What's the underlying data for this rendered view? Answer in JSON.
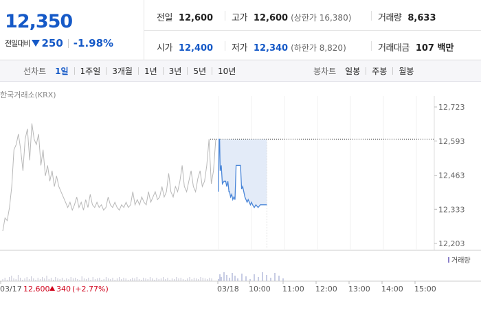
{
  "price": {
    "current": "12,350",
    "change_label": "전일대비",
    "change": "250",
    "change_rate": "-1.98%"
  },
  "stats": {
    "prev_close": {
      "label": "전일",
      "value": "12,600"
    },
    "high": {
      "label": "고가",
      "value": "12,600",
      "sub": "(상한가 16,380)"
    },
    "volume": {
      "label": "거래량",
      "value": "8,633"
    },
    "open": {
      "label": "시가",
      "value": "12,400"
    },
    "low": {
      "label": "저가",
      "value": "12,340",
      "sub": "(하한가 8,820)"
    },
    "trade_value": {
      "label": "거래대금",
      "value": "107 백만"
    }
  },
  "line_tabs": {
    "label": "선차트",
    "items": [
      "1일",
      "1주일",
      "3개월",
      "1년",
      "3년",
      "5년",
      "10년"
    ],
    "active": 0
  },
  "candle_tabs": {
    "label": "봉차트",
    "items": [
      "일봉",
      "주봉",
      "월봉"
    ]
  },
  "source": "한국거래소(KRX)",
  "colors": {
    "blue": "#1559c7",
    "red": "#d0021b",
    "line": "#4a86d8",
    "fill": "#e3ebf8",
    "history": "#b8b8b8"
  },
  "chart_data": {
    "type": "line",
    "y_ticks": [
      "12,723",
      "12,593",
      "12,463",
      "12,333",
      "12,203"
    ],
    "ylim": [
      12203,
      12723
    ],
    "x_ticks": [
      "03/17",
      "03/18",
      "10:00",
      "11:00",
      "12:00",
      "13:00",
      "14:00",
      "15:00"
    ],
    "volume_legend": "거래량",
    "prev_day": {
      "date": "03/17",
      "close": "12,600",
      "change": "340",
      "change_rate": "(+2.77%)"
    },
    "prev_close_line": 12600,
    "history": [
      12250,
      12300,
      12290,
      12340,
      12420,
      12560,
      12580,
      12620,
      12560,
      12480,
      12600,
      12640,
      12520,
      12660,
      12600,
      12580,
      12620,
      12500,
      12560,
      12460,
      12500,
      12440,
      12480,
      12420,
      12460,
      12420,
      12400,
      12380,
      12360,
      12340,
      12360,
      12330,
      12350,
      12380,
      12340,
      12360,
      12330,
      12370,
      12340,
      12390,
      12350,
      12340,
      12360,
      12340,
      12350,
      12330,
      12340,
      12380,
      12350,
      12340,
      12360,
      12340,
      12330,
      12350,
      12340,
      12360,
      12340,
      12350,
      12400,
      12350,
      12370,
      12350,
      12380,
      12360,
      12350,
      12400,
      12360,
      12380,
      12400,
      12370,
      12380,
      12420,
      12380,
      12400,
      12470,
      12400,
      12380,
      12420,
      12400,
      12440,
      12500,
      12420,
      12400,
      12440,
      12480,
      12420,
      12400,
      12450,
      12480,
      12420,
      12440,
      12500,
      12600,
      12430,
      12480,
      12600
    ],
    "today": [
      [
        "09:00",
        12400
      ],
      [
        "09:01",
        12600
      ],
      [
        "09:02",
        12600
      ],
      [
        "09:03",
        12480
      ],
      [
        "09:05",
        12500
      ],
      [
        "09:07",
        12430
      ],
      [
        "09:10",
        12440
      ],
      [
        "09:13",
        12440
      ],
      [
        "09:15",
        12420
      ],
      [
        "09:17",
        12440
      ],
      [
        "09:19",
        12400
      ],
      [
        "09:20",
        12400
      ],
      [
        "09:22",
        12380
      ],
      [
        "09:24",
        12390
      ],
      [
        "09:26",
        12370
      ],
      [
        "09:28",
        12380
      ],
      [
        "09:30",
        12370
      ],
      [
        "09:32",
        12500
      ],
      [
        "09:40",
        12500
      ],
      [
        "09:42",
        12410
      ],
      [
        "09:44",
        12420
      ],
      [
        "09:46",
        12400
      ],
      [
        "09:48",
        12380
      ],
      [
        "09:50",
        12370
      ],
      [
        "09:52",
        12360
      ],
      [
        "09:54",
        12370
      ],
      [
        "09:56",
        12360
      ],
      [
        "09:58",
        12350
      ],
      [
        "10:00",
        12360
      ],
      [
        "10:02",
        12350
      ],
      [
        "10:05",
        12340
      ],
      [
        "10:08",
        12350
      ],
      [
        "10:12",
        12340
      ],
      [
        "10:16",
        12350
      ],
      [
        "10:20",
        12350
      ],
      [
        "10:25",
        12350
      ],
      [
        "10:28",
        12350
      ]
    ],
    "volume_bars": [
      3,
      5,
      2,
      6,
      8,
      4,
      3,
      9,
      5,
      2,
      4,
      6,
      3,
      7,
      4,
      2,
      5,
      3,
      6,
      4,
      8,
      3,
      5,
      2,
      6,
      4,
      3,
      5,
      2,
      4,
      3,
      6,
      4,
      5,
      3,
      2,
      7,
      4,
      3,
      5,
      2,
      6,
      3,
      4,
      5,
      2,
      3,
      6,
      4,
      3,
      5,
      2,
      4,
      6,
      3,
      5,
      4,
      2,
      3,
      5,
      4,
      6,
      3,
      2,
      5,
      4,
      3,
      6,
      4,
      2,
      5,
      3,
      4,
      6,
      3,
      5,
      2,
      4,
      3,
      6,
      4,
      5,
      3,
      2,
      4,
      6,
      3,
      5,
      4,
      3,
      6,
      5,
      4,
      3,
      5,
      4
    ]
  }
}
